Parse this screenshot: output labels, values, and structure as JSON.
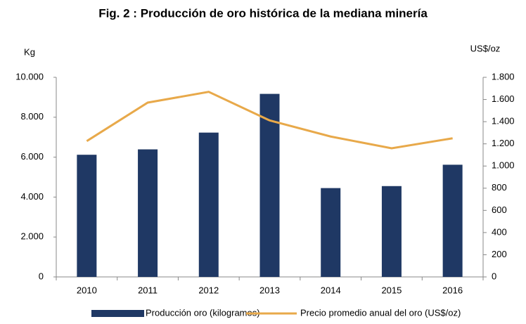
{
  "chart_data": {
    "type": "bar",
    "title": "Fig. 2 : Producción de oro histórica de la mediana minería",
    "y_label": "Kg",
    "y2_label": "US$/oz",
    "categories": [
      "2010",
      "2011",
      "2012",
      "2013",
      "2014",
      "2015",
      "2016"
    ],
    "series": [
      {
        "name": "Producción oro (kilogramos)",
        "color": "#1f3864",
        "type": "bar",
        "values": [
          6120,
          6390,
          7230,
          9170,
          4450,
          4550,
          5620
        ]
      },
      {
        "name": "Precio promedio anual del oro (US$/oz)",
        "color": "#e8a94a",
        "type": "line",
        "axis": "y2",
        "values": [
          1225,
          1572,
          1669,
          1411,
          1266,
          1160,
          1250
        ]
      }
    ],
    "ylim": [
      0,
      10000
    ],
    "yticks": [
      0,
      {
        "value": 2000,
        "label": "2.000"
      },
      {
        "value": 4000,
        "label": "4.000"
      },
      {
        "value": 6000,
        "label": "6.000"
      },
      {
        "value": 8000,
        "label": "8.000"
      },
      {
        "value": 10000,
        "label": "10.000"
      }
    ],
    "y2lim": [
      0,
      1800
    ],
    "y2ticks": [
      0,
      200,
      400,
      600,
      800,
      {
        "value": 1000,
        "label": "1.000"
      },
      {
        "value": 1200,
        "label": "1.200"
      },
      {
        "value": 1400,
        "label": "1.400"
      },
      {
        "value": 1600,
        "label": "1.600"
      },
      {
        "value": 1800,
        "label": "1.800"
      }
    ],
    "grid": false,
    "legend": "bottom"
  }
}
